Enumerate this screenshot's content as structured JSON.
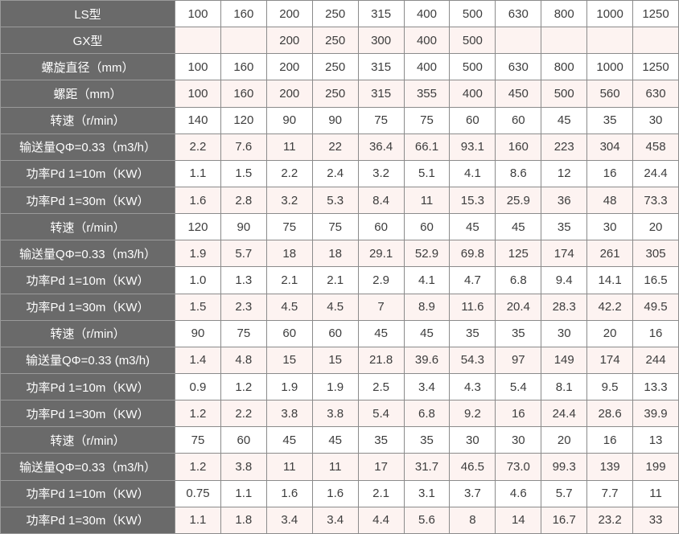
{
  "colors": {
    "header_bg": "#6a6a6a",
    "header_text": "#fefefe",
    "header_border": "#9a9a9a",
    "border": "#8b8b8b",
    "text": "#3d3d3d",
    "row_odd_bg": "#ffffff",
    "row_even_bg": "#fdf3f1"
  },
  "chart_data": {
    "type": "table",
    "title": "",
    "columns": 11,
    "legend_position": "none",
    "rows": [
      {
        "label": "LS型",
        "values": [
          "100",
          "160",
          "200",
          "250",
          "315",
          "400",
          "500",
          "630",
          "800",
          "1000",
          "1250"
        ]
      },
      {
        "label": "GX型",
        "values": [
          "",
          "",
          "200",
          "250",
          "300",
          "400",
          "500",
          "",
          "",
          "",
          ""
        ]
      },
      {
        "label": "螺旋直径（mm）",
        "values": [
          "100",
          "160",
          "200",
          "250",
          "315",
          "400",
          "500",
          "630",
          "800",
          "1000",
          "1250"
        ]
      },
      {
        "label": "螺距（mm）",
        "values": [
          "100",
          "160",
          "200",
          "250",
          "315",
          "355",
          "400",
          "450",
          "500",
          "560",
          "630"
        ]
      },
      {
        "label": "转速（r/min）",
        "values": [
          "140",
          "120",
          "90",
          "90",
          "75",
          "75",
          "60",
          "60",
          "45",
          "35",
          "30"
        ]
      },
      {
        "label": "输送量QΦ=0.33（m3/h）",
        "values": [
          "2.2",
          "7.6",
          "11",
          "22",
          "36.4",
          "66.1",
          "93.1",
          "160",
          "223",
          "304",
          "458"
        ]
      },
      {
        "label": "功率Pd 1=10m（KW）",
        "values": [
          "1.1",
          "1.5",
          "2.2",
          "2.4",
          "3.2",
          "5.1",
          "4.1",
          "8.6",
          "12",
          "16",
          "24.4"
        ]
      },
      {
        "label": "功率Pd 1=30m（KW）",
        "values": [
          "1.6",
          "2.8",
          "3.2",
          "5.3",
          "8.4",
          "11",
          "15.3",
          "25.9",
          "36",
          "48",
          "73.3"
        ]
      },
      {
        "label": "转速（r/min）",
        "values": [
          "120",
          "90",
          "75",
          "75",
          "60",
          "60",
          "45",
          "45",
          "35",
          "30",
          "20"
        ]
      },
      {
        "label": "输送量QΦ=0.33（m3/h）",
        "values": [
          "1.9",
          "5.7",
          "18",
          "18",
          "29.1",
          "52.9",
          "69.8",
          "125",
          "174",
          "261",
          "305"
        ]
      },
      {
        "label": "功率Pd 1=10m（KW）",
        "values": [
          "1.0",
          "1.3",
          "2.1",
          "2.1",
          "2.9",
          "4.1",
          "4.7",
          "6.8",
          "9.4",
          "14.1",
          "16.5"
        ]
      },
      {
        "label": "功率Pd 1=30m（KW）",
        "values": [
          "1.5",
          "2.3",
          "4.5",
          "4.5",
          "7",
          "8.9",
          "11.6",
          "20.4",
          "28.3",
          "42.2",
          "49.5"
        ]
      },
      {
        "label": "转速（r/min）",
        "values": [
          "90",
          "75",
          "60",
          "60",
          "45",
          "45",
          "35",
          "35",
          "30",
          "20",
          "16"
        ]
      },
      {
        "label": "输送量QΦ=0.33 (m3/h)",
        "values": [
          "1.4",
          "4.8",
          "15",
          "15",
          "21.8",
          "39.6",
          "54.3",
          "97",
          "149",
          "174",
          "244"
        ]
      },
      {
        "label": "功率Pd 1=10m（KW）",
        "values": [
          "0.9",
          "1.2",
          "1.9",
          "1.9",
          "2.5",
          "3.4",
          "4.3",
          "5.4",
          "8.1",
          "9.5",
          "13.3"
        ]
      },
      {
        "label": "功率Pd 1=30m（KW）",
        "values": [
          "1.2",
          "2.2",
          "3.8",
          "3.8",
          "5.4",
          "6.8",
          "9.2",
          "16",
          "24.4",
          "28.6",
          "39.9"
        ]
      },
      {
        "label": "转速（r/min）",
        "values": [
          "75",
          "60",
          "45",
          "45",
          "35",
          "35",
          "30",
          "30",
          "20",
          "16",
          "13"
        ]
      },
      {
        "label": "输送量QΦ=0.33（m3/h）",
        "values": [
          "1.2",
          "3.8",
          "11",
          "11",
          "17",
          "31.7",
          "46.5",
          "73.0",
          "99.3",
          "139",
          "199"
        ]
      },
      {
        "label": "功率Pd 1=10m（KW）",
        "values": [
          "0.75",
          "1.1",
          "1.6",
          "1.6",
          "2.1",
          "3.1",
          "3.7",
          "4.6",
          "5.7",
          "7.7",
          "11"
        ]
      },
      {
        "label": "功率Pd 1=30m（KW）",
        "values": [
          "1.1",
          "1.8",
          "3.4",
          "3.4",
          "4.4",
          "5.6",
          "8",
          "14",
          "16.7",
          "23.2",
          "33"
        ]
      }
    ]
  }
}
